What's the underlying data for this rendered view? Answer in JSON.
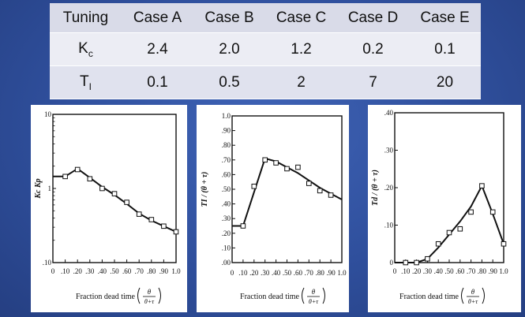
{
  "table": {
    "headers": [
      "Tuning",
      "Case A",
      "Case B",
      "Case C",
      "Case D",
      "Case E"
    ],
    "rows": [
      {
        "label_main": "K",
        "label_sub": "c",
        "values": [
          "2.4",
          "2.0",
          "1.2",
          "0.2",
          "0.1"
        ]
      },
      {
        "label_main": "T",
        "label_sub": "I",
        "values": [
          "0.1",
          "0.5",
          "2",
          "7",
          "20"
        ]
      }
    ]
  },
  "chart_data": [
    {
      "type": "line",
      "title": "",
      "ylabel": "Kc Kp",
      "xlabel": "Fraction dead time (θ/(θ+τ))",
      "yscale": "log",
      "ylim": [
        0.1,
        10
      ],
      "yticks": [
        "10",
        "1",
        ".10"
      ],
      "xlim": [
        0,
        1
      ],
      "xticks": [
        "0",
        ".10",
        ".20",
        ".30",
        ".40",
        ".50",
        ".60",
        ".70",
        ".80",
        ".90",
        "1.0"
      ],
      "series": [
        {
          "name": "curve",
          "x": [
            0,
            0.1,
            0.2,
            0.3,
            0.4,
            0.5,
            0.6,
            0.7,
            0.8,
            0.9,
            1.0
          ],
          "y": [
            1.45,
            1.45,
            1.85,
            1.4,
            1.05,
            0.82,
            0.62,
            0.46,
            0.37,
            0.31,
            0.26
          ]
        },
        {
          "name": "data",
          "x": [
            0.1,
            0.2,
            0.3,
            0.4,
            0.5,
            0.6,
            0.7,
            0.8,
            0.9,
            1.0
          ],
          "y": [
            1.45,
            1.8,
            1.35,
            1.0,
            0.85,
            0.65,
            0.45,
            0.38,
            0.31,
            0.26
          ]
        }
      ]
    },
    {
      "type": "line",
      "title": "",
      "ylabel": "TI / (θ + τ)",
      "xlabel": "Fraction dead time (θ/(θ+τ))",
      "ylim": [
        0,
        1
      ],
      "yticks": [
        ".00",
        ".10",
        ".20",
        ".30",
        ".40",
        ".50",
        ".60",
        ".70",
        ".80",
        ".90",
        "1.0"
      ],
      "xlim": [
        0,
        1
      ],
      "xticks": [
        "0",
        ".10",
        ".20",
        ".30",
        ".40",
        ".50",
        ".60",
        ".70",
        ".80",
        ".90",
        "1.0"
      ],
      "series": [
        {
          "name": "curve",
          "x": [
            0,
            0.1,
            0.3,
            0.4,
            0.5,
            0.6,
            0.7,
            0.8,
            0.9,
            1.0
          ],
          "y": [
            0.25,
            0.25,
            0.71,
            0.69,
            0.65,
            0.61,
            0.56,
            0.51,
            0.47,
            0.43
          ]
        },
        {
          "name": "data",
          "x": [
            0.1,
            0.2,
            0.3,
            0.4,
            0.5,
            0.6,
            0.7,
            0.8,
            0.9
          ],
          "y": [
            0.25,
            0.52,
            0.7,
            0.68,
            0.64,
            0.65,
            0.54,
            0.49,
            0.46
          ]
        }
      ]
    },
    {
      "type": "line",
      "title": "",
      "ylabel": "Td / (θ + τ)",
      "xlabel": "Fraction dead time (θ/(θ+τ))",
      "ylim": [
        0,
        0.4
      ],
      "yticks": [
        "0",
        ".10",
        ".20",
        ".30",
        ".40"
      ],
      "xlim": [
        0,
        1
      ],
      "xticks": [
        "0",
        ".10",
        ".20",
        ".30",
        ".40",
        ".50",
        ".60",
        ".70",
        ".80",
        ".90",
        "1.0"
      ],
      "series": [
        {
          "name": "curve",
          "x": [
            0,
            0.2,
            0.3,
            0.4,
            0.5,
            0.6,
            0.7,
            0.8,
            0.9,
            1.0
          ],
          "y": [
            0,
            0,
            0.01,
            0.04,
            0.075,
            0.11,
            0.15,
            0.205,
            0.13,
            0.05
          ]
        },
        {
          "name": "data",
          "x": [
            0.1,
            0.2,
            0.3,
            0.4,
            0.5,
            0.6,
            0.7,
            0.8,
            0.9,
            1.0
          ],
          "y": [
            0,
            0,
            0.01,
            0.05,
            0.08,
            0.09,
            0.135,
            0.205,
            0.135,
            0.05
          ]
        }
      ]
    }
  ]
}
